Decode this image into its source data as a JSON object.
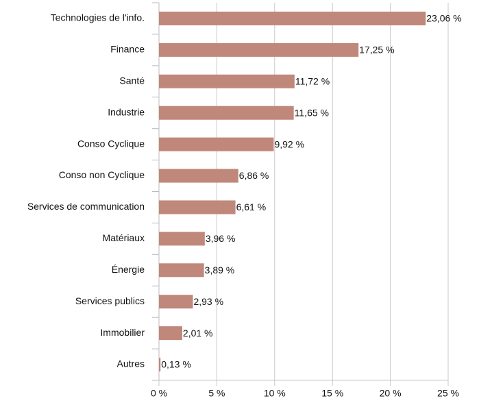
{
  "chart_data": {
    "type": "barh",
    "categories": [
      "Technologies de l'info.",
      "Finance",
      "Santé",
      "Industrie",
      "Conso Cyclique",
      "Conso non Cyclique",
      "Services de communication",
      "Matériaux",
      "Énergie",
      "Services publics",
      "Immobilier",
      "Autres"
    ],
    "values": [
      23.06,
      17.25,
      11.72,
      11.65,
      9.92,
      6.86,
      6.61,
      3.96,
      3.89,
      2.93,
      2.01,
      0.13
    ],
    "value_labels": [
      "23,06 %",
      "17,25 %",
      "11,72 %",
      "11,65 %",
      "9,92 %",
      "6,86 %",
      "6,61 %",
      "3,96 %",
      "3,89 %",
      "2,93 %",
      "2,01 %",
      "0,13 %"
    ],
    "color": "#c0887a",
    "xlim": [
      0,
      25
    ],
    "xticks": [
      {
        "value": 0,
        "label": "0 %"
      },
      {
        "value": 5,
        "label": "5 %"
      },
      {
        "value": 10,
        "label": "10 %"
      },
      {
        "value": 15,
        "label": "15 %"
      },
      {
        "value": 20,
        "label": "20 %"
      },
      {
        "value": 25,
        "label": "25 %"
      }
    ],
    "grid": true
  }
}
